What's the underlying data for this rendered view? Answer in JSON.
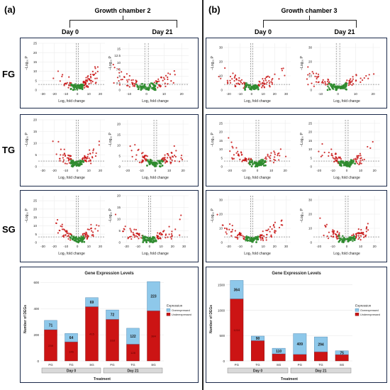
{
  "figure": {
    "panels": [
      {
        "label": "(a)",
        "chamber": "Growth chamber 2",
        "days": [
          "Day 0",
          "Day 21"
        ]
      },
      {
        "label": "(b)",
        "chamber": "Growth chamber 3",
        "days": [
          "Day 0",
          "Day 21"
        ]
      }
    ],
    "rows": [
      "FG",
      "TG",
      "SG"
    ]
  },
  "volcano_labels": {
    "x": "Log₂ fold change",
    "y": "−Log₁₀ P"
  },
  "volcano_plots": [
    {
      "panel": 0,
      "row": 0,
      "day": 0,
      "xticks": [
        -30,
        -20,
        -10,
        0,
        10,
        20
      ],
      "yticks": [
        0,
        5,
        10,
        15,
        20,
        25
      ],
      "ymax": 25
    },
    {
      "panel": 0,
      "row": 0,
      "day": 1,
      "xticks": [
        -10,
        0,
        10,
        20
      ],
      "yticks": [
        0,
        2.5,
        5,
        7.5,
        10,
        12.5,
        15
      ],
      "ymax": 17
    },
    {
      "panel": 0,
      "row": 1,
      "day": 0,
      "xticks": [
        -30,
        -20,
        -10,
        0,
        10,
        20
      ],
      "yticks": [
        0,
        5,
        10,
        15,
        20
      ],
      "ymax": 20
    },
    {
      "panel": 0,
      "row": 1,
      "day": 1,
      "xticks": [
        -20,
        -10,
        0,
        10,
        20
      ],
      "yticks": [
        0,
        5,
        10,
        15,
        20
      ],
      "ymax": 22
    },
    {
      "panel": 0,
      "row": 2,
      "day": 0,
      "xticks": [
        -30,
        -20,
        -10,
        0,
        10,
        20
      ],
      "yticks": [
        0,
        5,
        10,
        15,
        20,
        25
      ],
      "ymax": 28
    },
    {
      "panel": 0,
      "row": 2,
      "day": 1,
      "xticks": [
        -20,
        -10,
        0,
        10,
        20,
        30
      ],
      "yticks": [
        0,
        5,
        10,
        15,
        20
      ],
      "ymax": 20
    },
    {
      "panel": 1,
      "row": 0,
      "day": 0,
      "xticks": [
        -20,
        -10,
        0,
        10,
        20,
        30
      ],
      "yticks": [
        0,
        10,
        20,
        30
      ],
      "ymax": 33
    },
    {
      "panel": 1,
      "row": 0,
      "day": 1,
      "xticks": [
        -10,
        0,
        10,
        20
      ],
      "yticks": [
        0,
        10,
        20,
        30
      ],
      "ymax": 33
    },
    {
      "panel": 1,
      "row": 1,
      "day": 0,
      "xticks": [
        -20,
        -10,
        0,
        10,
        20
      ],
      "yticks": [
        0,
        5,
        10,
        15,
        20,
        25
      ],
      "ymax": 27
    },
    {
      "panel": 1,
      "row": 1,
      "day": 1,
      "xticks": [
        -20,
        -10,
        0,
        10,
        20
      ],
      "yticks": [
        0,
        5,
        10,
        15,
        20,
        25
      ],
      "ymax": 27
    },
    {
      "panel": 1,
      "row": 2,
      "day": 0,
      "xticks": [
        -20,
        -10,
        0,
        10,
        20,
        30
      ],
      "yticks": [
        0,
        10,
        20,
        30
      ],
      "ymax": 33
    },
    {
      "panel": 1,
      "row": 2,
      "day": 1,
      "xticks": [
        -20,
        -10,
        0,
        10,
        20
      ],
      "yticks": [
        0,
        10,
        20,
        30
      ],
      "ymax": 33
    }
  ],
  "chart_data": [
    {
      "type": "bar",
      "stacked": true,
      "title": "Gene Expression Levels",
      "xlabel": "Treatment",
      "ylabel": "Number of DEGs",
      "groups": [
        "Day 0",
        "Day 21"
      ],
      "categories": [
        "FG",
        "TG",
        "SG",
        "FG",
        "TG",
        "SG"
      ],
      "ylim": [
        0,
        640
      ],
      "yticks": [
        0,
        200,
        400,
        600
      ],
      "legend": {
        "title": "Expression",
        "position": "right",
        "entries": [
          "Overexpressed",
          "Underexpressed"
        ]
      },
      "series": [
        {
          "name": "Underexpressed",
          "color": "#cc1414",
          "values": [
            239,
            146,
            415,
            318,
            128,
            384
          ]
        },
        {
          "name": "Overexpressed",
          "color": "#8ec8ea",
          "values": [
            71,
            64,
            69,
            72,
            122,
            223
          ]
        }
      ],
      "labels": {
        "Overexpressed": [
          "71",
          "64",
          "69",
          "72",
          "122",
          "223"
        ],
        "Underexpressed": [
          "239",
          "146",
          "415",
          "318",
          "128",
          "384"
        ]
      }
    },
    {
      "type": "bar",
      "stacked": true,
      "title": "Gene Expression Levels",
      "xlabel": "Treatment",
      "ylabel": "Number of DEGs",
      "groups": [
        "Day 0",
        "Day 21"
      ],
      "categories": [
        "FG",
        "TG",
        "SG",
        "FG",
        "TG",
        "SG"
      ],
      "ylim": [
        0,
        1650
      ],
      "yticks": [
        0,
        500,
        1000,
        1500
      ],
      "legend": {
        "title": "Expression",
        "position": "right",
        "entries": [
          "Overexpressed",
          "Underexpressed"
        ]
      },
      "series": [
        {
          "name": "Underexpressed",
          "color": "#cc1414",
          "values": [
            1224,
            400,
            140,
            130,
            180,
            125
          ]
        },
        {
          "name": "Overexpressed",
          "color": "#8ec8ea",
          "values": [
            364,
            90,
            110,
            409,
            294,
            75
          ]
        }
      ],
      "labels": {
        "Overexpressed": [
          "364",
          "90",
          "110",
          "409",
          "294",
          "75"
        ],
        "Underexpressed": [
          "1224",
          "",
          "",
          "",
          "",
          ""
        ]
      }
    }
  ]
}
